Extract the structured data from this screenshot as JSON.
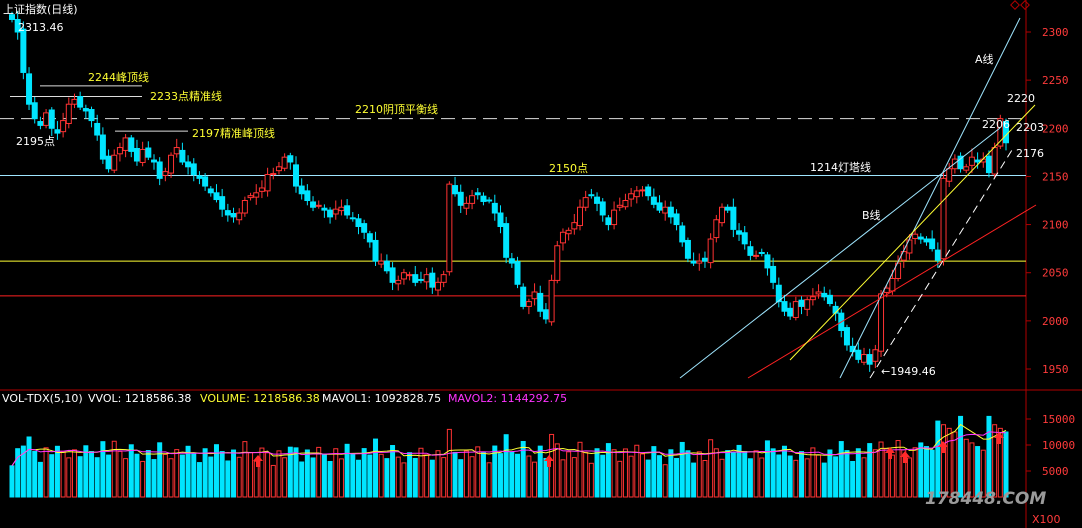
{
  "title": "上证指数(日线)",
  "watermark": "178448.COM",
  "colors": {
    "up": "#ff3333",
    "down": "#00e5ff",
    "bg": "#000000",
    "axis": "#b00000",
    "yellow": "#ffff33",
    "magenta": "#ff33ff",
    "white": "#ffffff"
  },
  "chart_data": [
    {
      "type": "candlestick",
      "title": "上证指数(日线)",
      "y_ticks": [
        1950,
        2000,
        2050,
        2100,
        2150,
        2200,
        2250,
        2300
      ],
      "ylim": [
        1935,
        2325
      ],
      "closes": [
        2313,
        2300,
        2258,
        2225,
        2210,
        2203,
        2216,
        2200,
        2195,
        2208,
        2225,
        2230,
        2222,
        2218,
        2208,
        2193,
        2168,
        2158,
        2172,
        2180,
        2190,
        2176,
        2166,
        2178,
        2170,
        2165,
        2148,
        2155,
        2172,
        2180,
        2165,
        2160,
        2152,
        2148,
        2140,
        2133,
        2126,
        2116,
        2110,
        2108,
        2112,
        2125,
        2130,
        2133,
        2138,
        2152,
        2153,
        2160,
        2170,
        2165,
        2140,
        2132,
        2125,
        2118,
        2120,
        2115,
        2108,
        2116,
        2118,
        2110,
        2106,
        2098,
        2092,
        2082,
        2062,
        2062,
        2052,
        2040,
        2042,
        2050,
        2048,
        2040,
        2042,
        2048,
        2035,
        2040,
        2048,
        2142,
        2132,
        2120,
        2122,
        2130,
        2131,
        2124,
        2125,
        2112,
        2098,
        2066,
        2060,
        2038,
        2015,
        2020,
        2030,
        2010,
        2002,
        2042,
        2078,
        2092,
        2094,
        2102,
        2118,
        2128,
        2130,
        2122,
        2110,
        2100,
        2115,
        2120,
        2125,
        2132,
        2135,
        2136,
        2130,
        2121,
        2115,
        2118,
        2108,
        2100,
        2082,
        2065,
        2060,
        2062,
        2062,
        2085,
        2105,
        2118,
        2115,
        2095,
        2090,
        2080,
        2068,
        2068,
        2070,
        2055,
        2040,
        2020,
        2010,
        2005,
        2020,
        2015,
        2022,
        2025,
        2030,
        2025,
        2018,
        2008,
        1990,
        1975,
        1968,
        1960,
        1965,
        1955,
        1970,
        2028,
        2034,
        2044,
        2060,
        2072,
        2084,
        2090,
        2085,
        2082,
        2075,
        2063,
        2148,
        2158,
        2168,
        2158,
        2160,
        2170,
        2165,
        2168,
        2154,
        2180,
        2210,
        2185
      ],
      "annotations": [
        "2313.46",
        "2244峰顶线",
        "2233点精准线",
        "2210阴顶平衡线",
        "2195点",
        "2197精准峰顶线",
        "2150点",
        "1214灯塔线",
        "B线",
        "A线",
        "←1949.46",
        "2220",
        "2206",
        "2203",
        "2176"
      ]
    },
    {
      "type": "bar",
      "title": "VOL-TDX(5,10)",
      "series_labels": [
        "VVOL: 1218586.38",
        "VOLUME: 1218586.38",
        "MAVOL1: 1092828.75",
        "MAVOL2: 1144292.75"
      ],
      "y_ticks": [
        5000,
        10000,
        15000
      ],
      "unit": "X100",
      "ylim": [
        0,
        17000
      ]
    }
  ],
  "labels": {
    "hi": "2313.46",
    "peak2244": "2244峰顶线",
    "line2233": "2233点精准线",
    "line2210": "2210阴顶平衡线",
    "pt2195": "2195点",
    "line2197": "2197精准峰顶线",
    "pt2150": "2150点",
    "line1214": "1214灯塔线",
    "lineB": "B线",
    "lineA": "A线",
    "low": "←1949.46",
    "r2220": "2220",
    "r2206": "2206",
    "r2203": "2203",
    "r2176": "2176"
  },
  "volume_panel": {
    "name": "VOL-TDX(5,10)",
    "vvol": "VVOL: 1218586.38",
    "volume": "VOLUME: 1218586.38",
    "mavol1": "MAVOL1: 1092828.75",
    "mavol2": "MAVOL2: 1144292.75",
    "unit": "X100"
  }
}
